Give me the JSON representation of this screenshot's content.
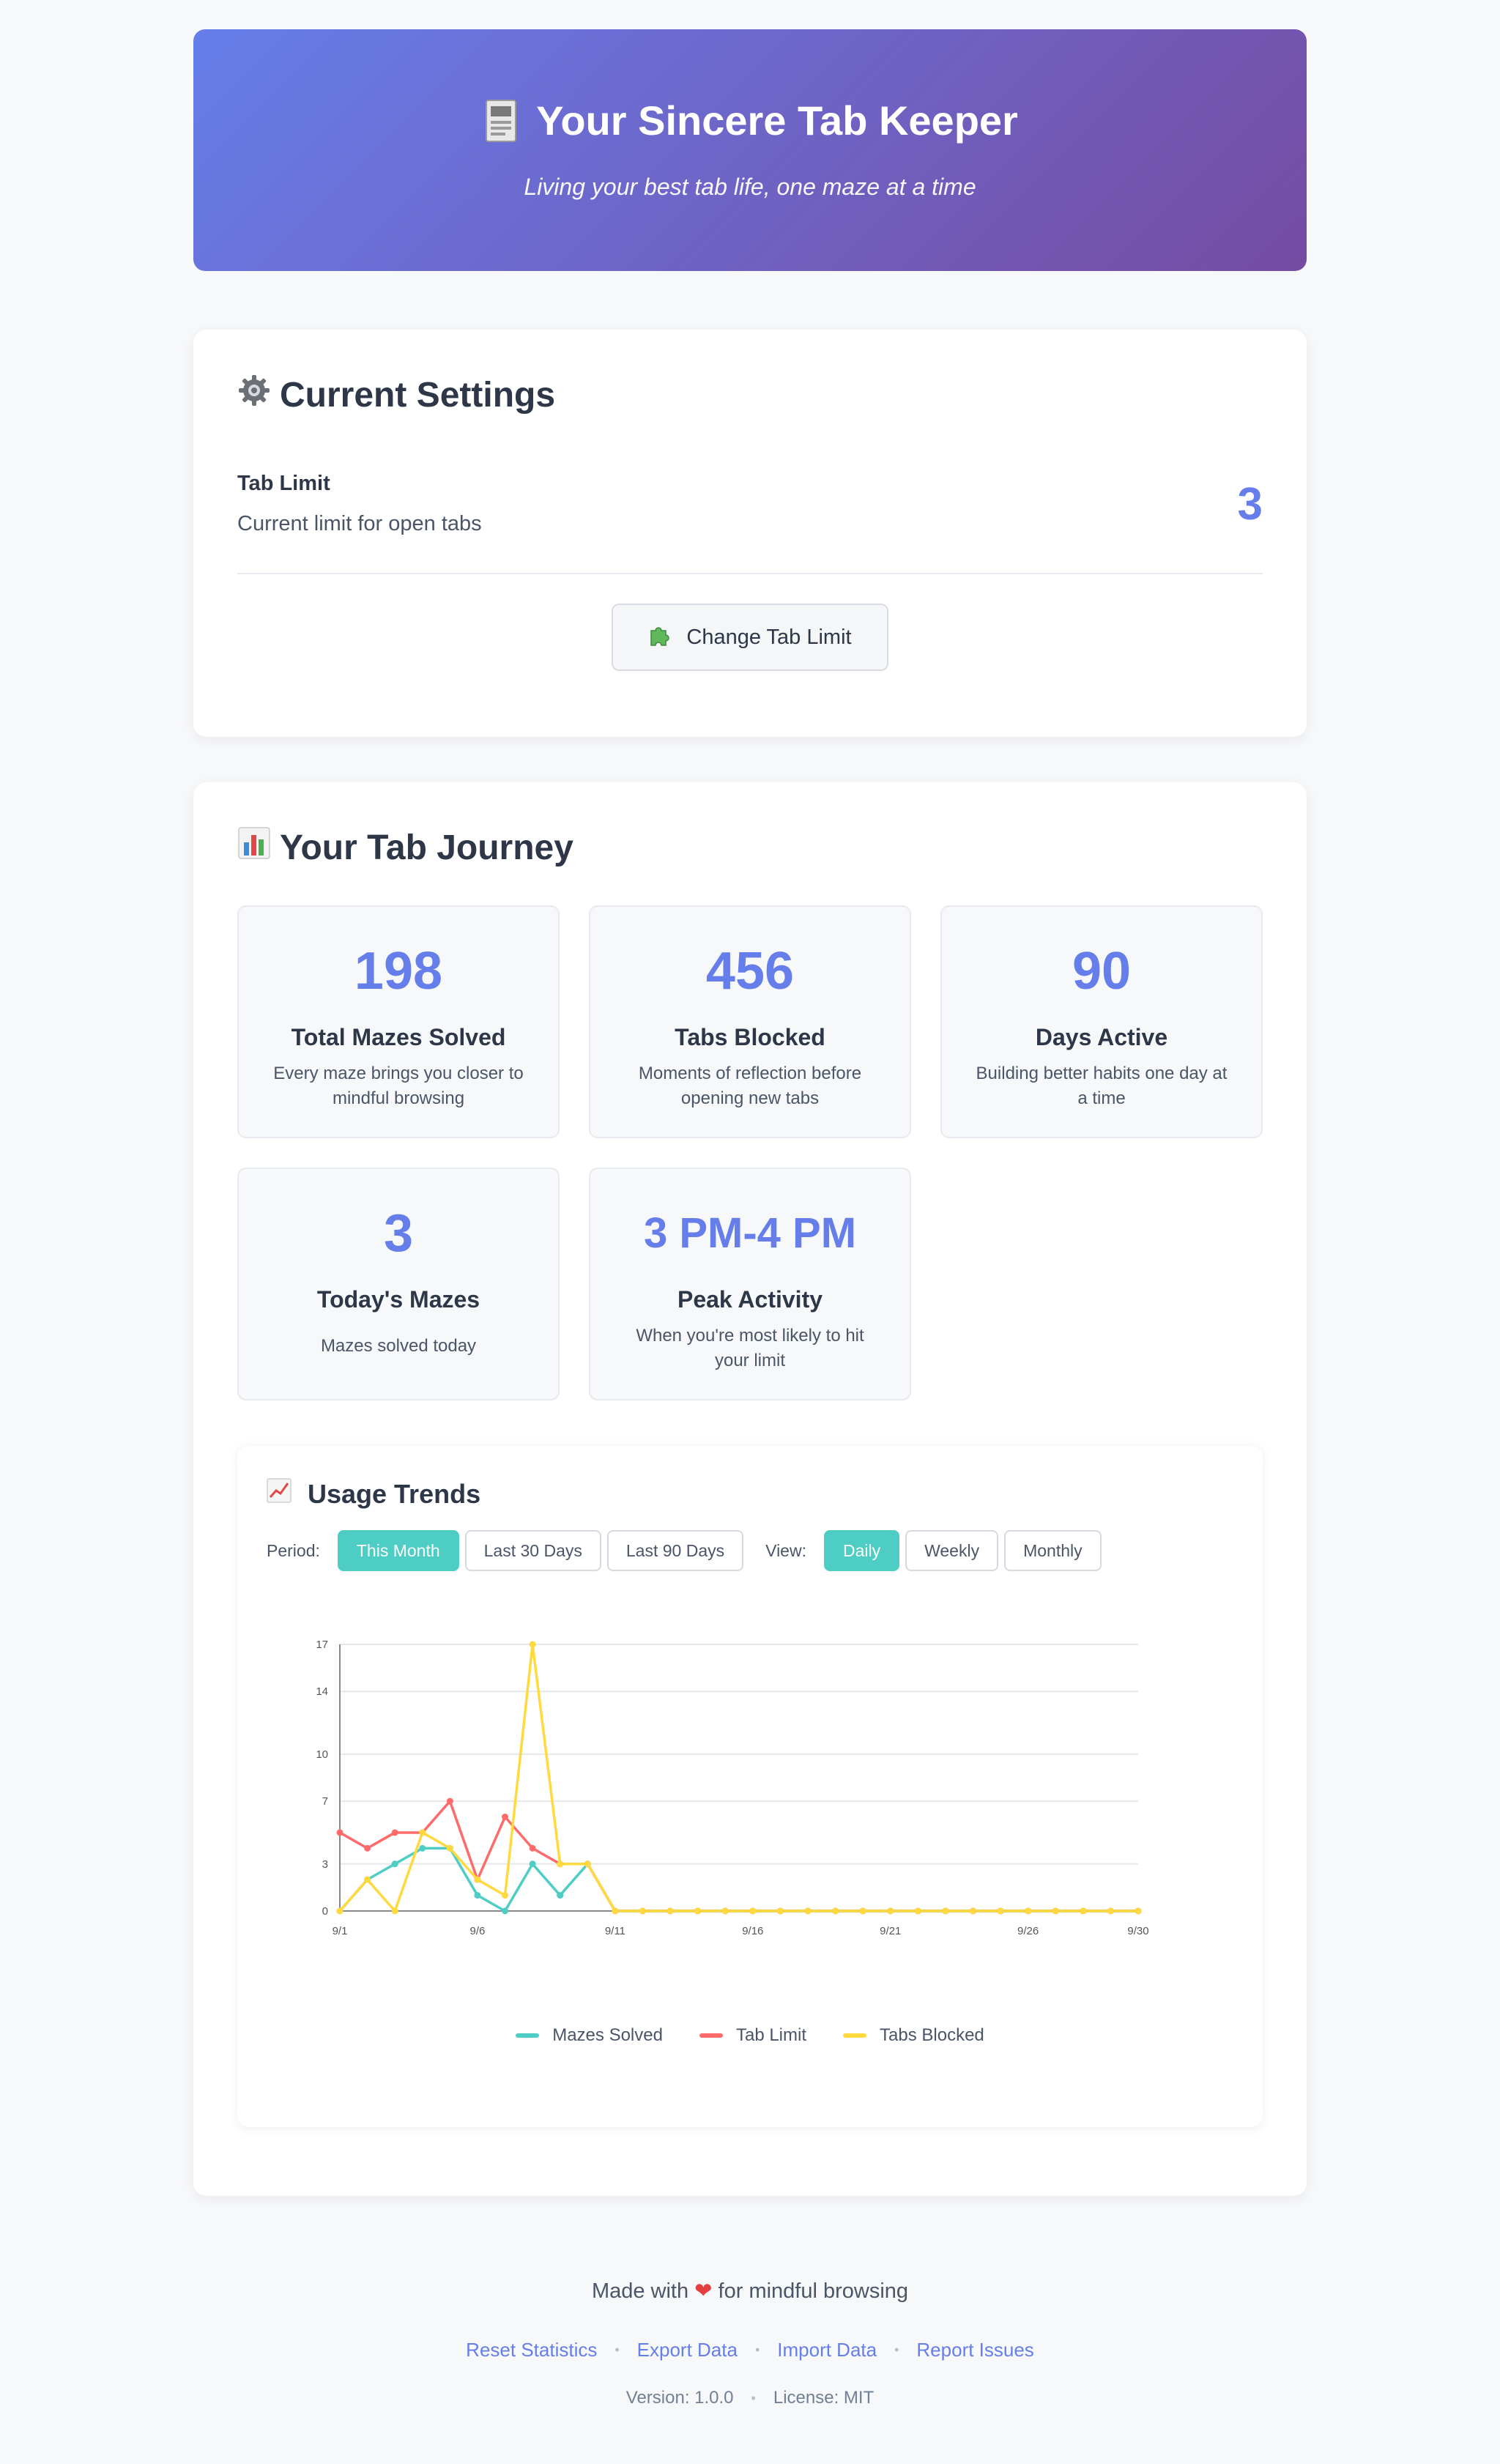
{
  "header": {
    "title": "Your Sincere Tab Keeper",
    "subtitle": "Living your best tab life, one maze at a time",
    "icon": "document-icon"
  },
  "settings": {
    "title": "Current Settings",
    "icon": "gear-icon",
    "tab_limit_label": "Tab Limit",
    "tab_limit_desc": "Current limit for open tabs",
    "tab_limit_value": "3",
    "change_button": "Change Tab Limit",
    "change_icon": "puzzle-icon"
  },
  "journey": {
    "title": "Your Tab Journey",
    "icon": "bar-chart-icon",
    "stats": [
      {
        "value": "198",
        "label": "Total Mazes Solved",
        "desc": "Every maze brings you closer to mindful browsing"
      },
      {
        "value": "456",
        "label": "Tabs Blocked",
        "desc": "Moments of reflection before opening new tabs"
      },
      {
        "value": "90",
        "label": "Days Active",
        "desc": "Building better habits one day at a time"
      },
      {
        "value": "3",
        "label": "Today's Mazes",
        "desc": "Mazes solved today"
      },
      {
        "value": "3 PM-4 PM",
        "label": "Peak Activity",
        "desc": "When you're most likely to hit your limit"
      }
    ]
  },
  "trends": {
    "title": "Usage Trends",
    "icon": "trend-icon",
    "period_label": "Period:",
    "period_options": [
      "This Month",
      "Last 30 Days",
      "Last 90 Days"
    ],
    "period_selected": "This Month",
    "view_label": "View:",
    "view_options": [
      "Daily",
      "Weekly",
      "Monthly"
    ],
    "view_selected": "Daily"
  },
  "chart_data": {
    "type": "line",
    "x": [
      "9/1",
      "9/2",
      "9/3",
      "9/4",
      "9/5",
      "9/6",
      "9/7",
      "9/8",
      "9/9",
      "9/10",
      "9/11",
      "9/12",
      "9/13",
      "9/14",
      "9/15",
      "9/16",
      "9/17",
      "9/18",
      "9/19",
      "9/20",
      "9/21",
      "9/22",
      "9/23",
      "9/24",
      "9/25",
      "9/26",
      "9/27",
      "9/28",
      "9/29",
      "9/30"
    ],
    "x_tick_labels": [
      "9/1",
      "9/6",
      "9/11",
      "9/16",
      "9/21",
      "9/26",
      "9/30"
    ],
    "y_ticks": [
      0,
      3,
      7,
      10,
      14,
      17
    ],
    "ylim": [
      0,
      17
    ],
    "grid": true,
    "legend_position": "bottom",
    "series": [
      {
        "name": "Mazes Solved",
        "color": "#4ecdc4",
        "values": [
          0,
          2,
          3,
          4,
          4,
          1,
          0,
          3,
          1,
          3,
          0,
          0,
          0,
          0,
          0,
          0,
          0,
          0,
          0,
          0,
          0,
          0,
          0,
          0,
          0,
          0,
          0,
          0,
          0,
          0
        ]
      },
      {
        "name": "Tab Limit",
        "color": "#ff6b6b",
        "values": [
          5,
          4,
          5,
          5,
          7,
          2,
          6,
          4,
          3,
          3,
          0,
          0,
          0,
          0,
          0,
          0,
          0,
          0,
          0,
          0,
          0,
          0,
          0,
          0,
          0,
          0,
          0,
          0,
          0,
          0
        ]
      },
      {
        "name": "Tabs Blocked",
        "color": "#ffd93d",
        "values": [
          0,
          2,
          0,
          5,
          4,
          2,
          1,
          17,
          3,
          3,
          0,
          0,
          0,
          0,
          0,
          0,
          0,
          0,
          0,
          0,
          0,
          0,
          0,
          0,
          0,
          0,
          0,
          0,
          0,
          0
        ]
      }
    ]
  },
  "footer": {
    "made_with_prefix": "Made with",
    "made_with_suffix": "for mindful browsing",
    "heart_icon": "heart-icon",
    "links": [
      "Reset Statistics",
      "Export Data",
      "Import Data",
      "Report Issues"
    ],
    "version": "Version: 1.0.0",
    "license": "License: MIT"
  }
}
